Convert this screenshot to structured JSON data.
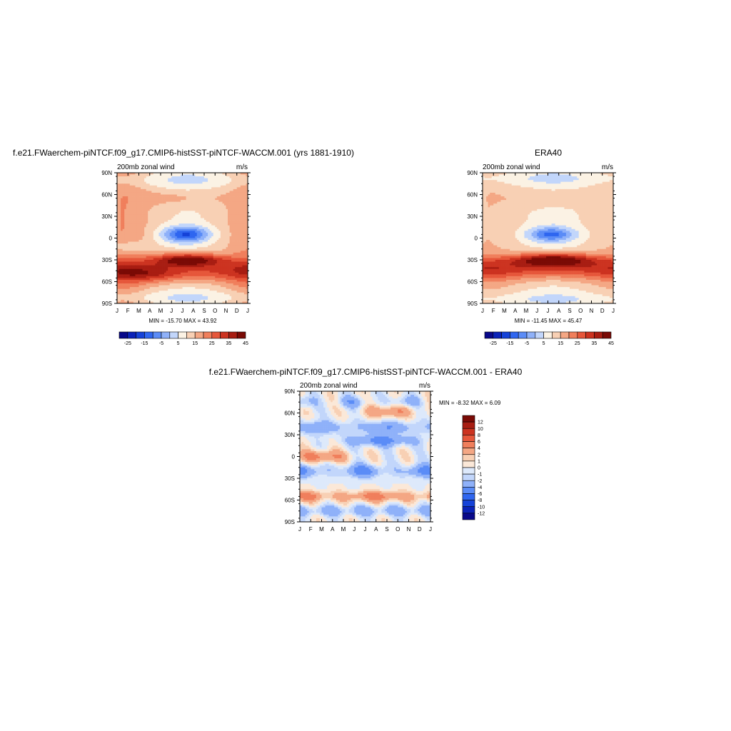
{
  "panels": [
    {
      "id": "model",
      "title": "f.e21.FWaerchem-piNTCF.f09_g17.CMIP6-histSST-piNTCF-WACCM.001 (yrs 1881-1910)",
      "left_label": "200mb zonal wind",
      "right_label": "m/s",
      "stats": "MIN = -15.70 MAX =  43.92"
    },
    {
      "id": "obs",
      "title": "ERA40",
      "left_label": "200mb zonal wind",
      "right_label": "m/s",
      "stats": "MIN = -11.45 MAX =  45.47"
    },
    {
      "id": "diff",
      "title": "f.e21.FWaerchem-piNTCF.f09_g17.CMIP6-histSST-piNTCF-WACCM.001 - ERA40",
      "left_label": "200mb zonal wind",
      "right_label": "m/s",
      "stats": "MIN =  -8.32 MAX =   6.09"
    }
  ],
  "chart_data": [
    {
      "type": "heatmap",
      "title": "f.e21.FWaerchem-piNTCF.f09_g17.CMIP6-histSST-piNTCF-WACCM.001 (yrs 1881-1910)",
      "subtitle_left": "200mb zonal wind",
      "units": "m/s",
      "x_ticks": [
        "J",
        "F",
        "M",
        "A",
        "M",
        "J",
        "J",
        "A",
        "S",
        "O",
        "N",
        "D",
        "J"
      ],
      "y_ticks": [
        "90N",
        "60N",
        "30N",
        "0",
        "30S",
        "60S",
        "90S"
      ],
      "colorbar_labels": [
        "-25",
        "-15",
        "-5",
        "5",
        "15",
        "25",
        "35",
        "45"
      ],
      "colorbar_position": "bottom",
      "min": -15.7,
      "max": 43.92
    },
    {
      "type": "heatmap",
      "title": "ERA40",
      "subtitle_left": "200mb zonal wind",
      "units": "m/s",
      "x_ticks": [
        "J",
        "F",
        "M",
        "A",
        "M",
        "J",
        "J",
        "A",
        "S",
        "O",
        "N",
        "D",
        "J"
      ],
      "y_ticks": [
        "90N",
        "60N",
        "30N",
        "0",
        "30S",
        "60S",
        "90S"
      ],
      "colorbar_labels": [
        "-25",
        "-15",
        "-5",
        "5",
        "15",
        "25",
        "35",
        "45"
      ],
      "colorbar_position": "bottom",
      "min": -11.45,
      "max": 45.47
    },
    {
      "type": "heatmap",
      "title": "f.e21.FWaerchem-piNTCF.f09_g17.CMIP6-histSST-piNTCF-WACCM.001 - ERA40",
      "subtitle_left": "200mb zonal wind",
      "units": "m/s",
      "x_ticks": [
        "J",
        "F",
        "M",
        "A",
        "M",
        "J",
        "J",
        "A",
        "S",
        "O",
        "N",
        "D",
        "J"
      ],
      "y_ticks": [
        "90N",
        "60N",
        "30N",
        "0",
        "30S",
        "60S",
        "90S"
      ],
      "colorbar_labels": [
        "12",
        "10",
        "8",
        "6",
        "4",
        "2",
        "1",
        "0",
        "-1",
        "-2",
        "-4",
        "-6",
        "-8",
        "-10",
        "-12"
      ],
      "colorbar_position": "right",
      "min": -8.32,
      "max": 6.09
    }
  ],
  "colors": {
    "main_scale": [
      "#08088a",
      "#0a22b8",
      "#1542d8",
      "#2f66f0",
      "#5b8cf7",
      "#8fb1f9",
      "#c2d6fb",
      "#fbf2e4",
      "#f8d0b4",
      "#f4a784",
      "#f07f5c",
      "#e6573b",
      "#cc3320",
      "#a81d12",
      "#7a0a05"
    ],
    "diff_scale": [
      "#7a0a05",
      "#a81d12",
      "#cc3320",
      "#e6573b",
      "#f07f5c",
      "#f4a784",
      "#f8d0b4",
      "#fbe8d8",
      "#dde9fb",
      "#c2d6fb",
      "#8fb1f9",
      "#5b8cf7",
      "#2f66f0",
      "#1542d8",
      "#0a22b8",
      "#08088a"
    ]
  }
}
